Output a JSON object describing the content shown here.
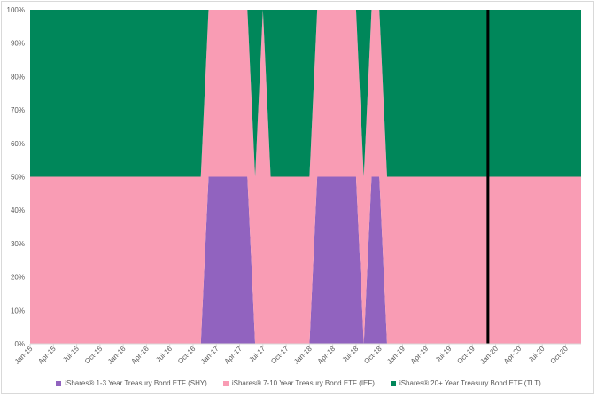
{
  "chart_data": {
    "type": "area",
    "stacked": true,
    "x": [
      "Jan-15",
      "Feb-15",
      "Mar-15",
      "Apr-15",
      "May-15",
      "Jun-15",
      "Jul-15",
      "Aug-15",
      "Sep-15",
      "Oct-15",
      "Nov-15",
      "Dec-15",
      "Jan-16",
      "Feb-16",
      "Mar-16",
      "Apr-16",
      "May-16",
      "Jun-16",
      "Jul-16",
      "Aug-16",
      "Sep-16",
      "Oct-16",
      "Nov-16",
      "Dec-16",
      "Jan-17",
      "Feb-17",
      "Mar-17",
      "Apr-17",
      "May-17",
      "Jun-17",
      "Jul-17",
      "Aug-17",
      "Sep-17",
      "Oct-17",
      "Nov-17",
      "Dec-17",
      "Jan-18",
      "Feb-18",
      "Mar-18",
      "Apr-18",
      "May-18",
      "Jun-18",
      "Jul-18",
      "Aug-18",
      "Sep-18",
      "Oct-18",
      "Nov-18",
      "Dec-18",
      "Jan-19",
      "Feb-19",
      "Mar-19",
      "Apr-19",
      "May-19",
      "Jun-19",
      "Jul-19",
      "Aug-19",
      "Sep-19",
      "Oct-19",
      "Nov-19",
      "Dec-19",
      "Jan-20",
      "Feb-20",
      "Mar-20",
      "Apr-20",
      "May-20",
      "Jun-20",
      "Jul-20",
      "Aug-20",
      "Sep-20",
      "Oct-20",
      "Nov-20",
      "Dec-20"
    ],
    "x_tick_labels": [
      "Jan-15",
      "Apr-15",
      "Jul-15",
      "Oct-15",
      "Jan-16",
      "Apr-16",
      "Jul-16",
      "Oct-16",
      "Jan-17",
      "Apr-17",
      "Jul-17",
      "Oct-17",
      "Jan-18",
      "Apr-18",
      "Jul-18",
      "Oct-18",
      "Jan-19",
      "Apr-19",
      "Jul-19",
      "Oct-19",
      "Jan-20",
      "Apr-20",
      "Jul-20",
      "Oct-20"
    ],
    "y_tick_labels": [
      "0%",
      "10%",
      "20%",
      "30%",
      "40%",
      "50%",
      "60%",
      "70%",
      "80%",
      "90%",
      "100%"
    ],
    "ylim": [
      0,
      1
    ],
    "series": [
      {
        "name": "iShares® 1-3 Year Treasury Bond ETF (SHY)",
        "color": "#9163bf",
        "values": [
          0,
          0,
          0,
          0,
          0,
          0,
          0,
          0,
          0,
          0,
          0,
          0,
          0,
          0,
          0,
          0,
          0,
          0,
          0,
          0,
          0,
          0,
          0,
          0.5,
          0.5,
          0.5,
          0.5,
          0.5,
          0.5,
          0,
          0,
          0,
          0,
          0,
          0,
          0,
          0,
          0.5,
          0.5,
          0.5,
          0.5,
          0.5,
          0.5,
          0,
          0.5,
          0.5,
          0,
          0,
          0,
          0,
          0,
          0,
          0,
          0,
          0,
          0,
          0,
          0,
          0,
          0,
          0,
          0,
          0,
          0,
          0,
          0,
          0,
          0,
          0,
          0,
          0,
          0
        ]
      },
      {
        "name": "iShares® 7-10 Year Treasury Bond ETF (IEF)",
        "color": "#f99cb4",
        "values": [
          0.5,
          0.5,
          0.5,
          0.5,
          0.5,
          0.5,
          0.5,
          0.5,
          0.5,
          0.5,
          0.5,
          0.5,
          0.5,
          0.5,
          0.5,
          0.5,
          0.5,
          0.5,
          0.5,
          0.5,
          0.5,
          0.5,
          0.5,
          0.5,
          0.5,
          0.5,
          0.5,
          0.5,
          0.5,
          0.5,
          1,
          0.5,
          0.5,
          0.5,
          0.5,
          0.5,
          0.5,
          0.5,
          0.5,
          0.5,
          0.5,
          0.5,
          0.5,
          0.5,
          0.5,
          0.5,
          0.5,
          0.5,
          0.5,
          0.5,
          0.5,
          0.5,
          0.5,
          0.5,
          0.5,
          0.5,
          0.5,
          0.5,
          0.5,
          0.5,
          0.5,
          0.5,
          0.5,
          0.5,
          0.5,
          0.5,
          0.5,
          0.5,
          0.5,
          0.5,
          0.5,
          0.5
        ]
      },
      {
        "name": "iShares® 20+ Year Treasury Bond ETF (TLT)",
        "color": "#00875a",
        "values": [
          0.5,
          0.5,
          0.5,
          0.5,
          0.5,
          0.5,
          0.5,
          0.5,
          0.5,
          0.5,
          0.5,
          0.5,
          0.5,
          0.5,
          0.5,
          0.5,
          0.5,
          0.5,
          0.5,
          0.5,
          0.5,
          0.5,
          0.5,
          0,
          0,
          0,
          0,
          0,
          0,
          0.5,
          0,
          0.5,
          0.5,
          0.5,
          0.5,
          0.5,
          0.5,
          0,
          0,
          0,
          0,
          0,
          0,
          0.5,
          0,
          0,
          0.5,
          0.5,
          0.5,
          0.5,
          0.5,
          0.5,
          0.5,
          0.5,
          0.5,
          0.5,
          0.5,
          0.5,
          0.5,
          0.5,
          0.5,
          0.5,
          0.5,
          0.5,
          0.5,
          0.5,
          0.5,
          0.5,
          0.5,
          0.5,
          0.5,
          0.5
        ]
      }
    ],
    "vertical_marker": {
      "x": "Dec-19",
      "color": "#000000"
    },
    "grid": false,
    "legend_position": "bottom"
  }
}
